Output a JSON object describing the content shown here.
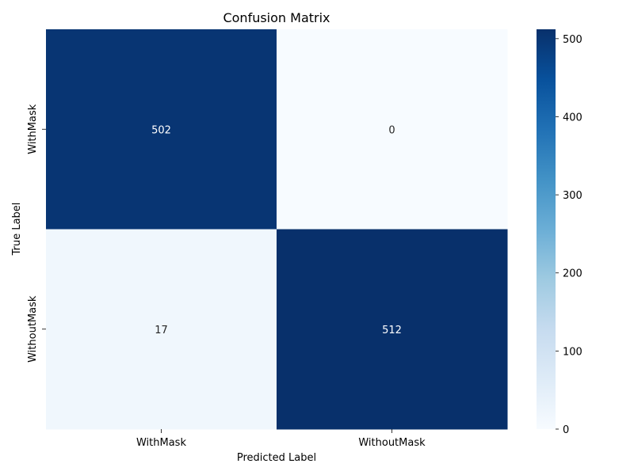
{
  "chart_data": {
    "type": "heatmap",
    "title": "Confusion Matrix",
    "xlabel": "Predicted Label",
    "ylabel": "True Label",
    "x_categories": [
      "WithMask",
      "WithoutMask"
    ],
    "y_categories": [
      "WithMask",
      "WithoutMask"
    ],
    "values": [
      [
        502,
        0
      ],
      [
        17,
        512
      ]
    ],
    "colorbar": {
      "colormap": "Blues",
      "range": [
        0,
        512
      ],
      "ticks": [
        0,
        100,
        200,
        300,
        400,
        500
      ],
      "low_color": "#f7fbff",
      "high_color": "#08306b"
    }
  }
}
